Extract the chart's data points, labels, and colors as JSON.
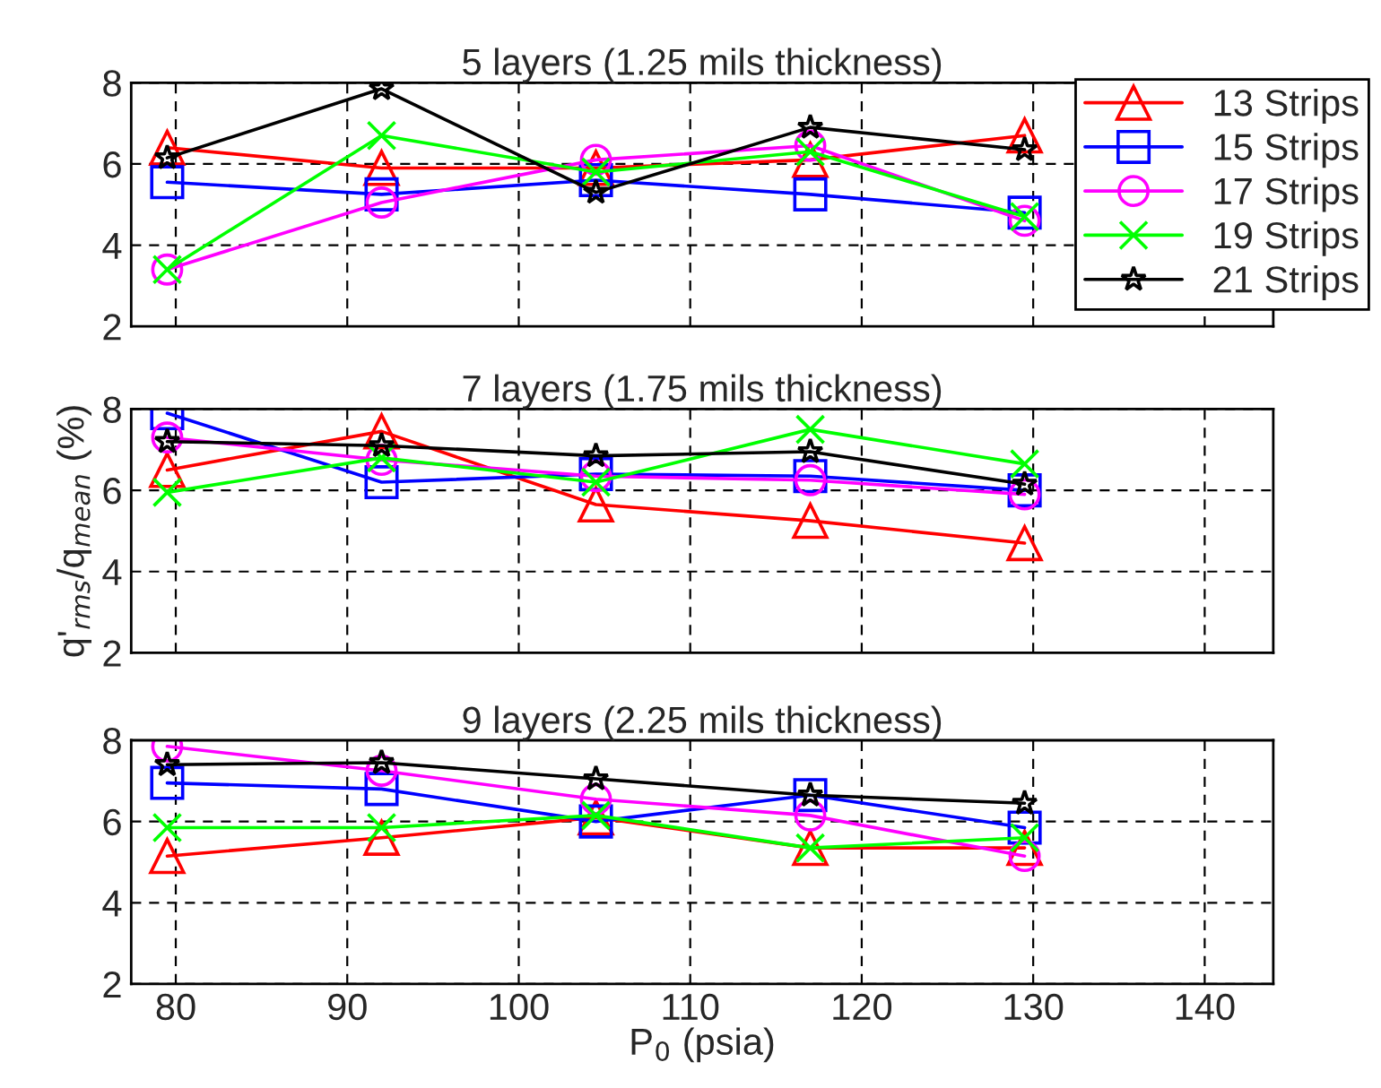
{
  "chart_data": [
    {
      "type": "line",
      "title": "5 layers (1.25 mils thickness)",
      "x": [
        79.5,
        92,
        104.5,
        117,
        129.5
      ],
      "xlim": [
        77.4,
        144
      ],
      "xticks": [
        80,
        90,
        100,
        110,
        120,
        130,
        140
      ],
      "ylim": [
        2,
        8
      ],
      "yticks": [
        2,
        4,
        6,
        8
      ],
      "grid": true,
      "legend": "top right",
      "tick_labels": "y",
      "line_style": "solid",
      "series": [
        {
          "name": "13 Strips",
          "color": "#ff0000",
          "marker": "triangle",
          "values": [
            6.4,
            5.9,
            5.9,
            6.1,
            6.7
          ]
        },
        {
          "name": "15 Strips",
          "color": "#0000ff",
          "marker": "square",
          "values": [
            5.55,
            5.25,
            5.6,
            5.25,
            4.8
          ]
        },
        {
          "name": "17 Strips",
          "color": "#ff00ff",
          "marker": "circle",
          "values": [
            3.4,
            5.05,
            6.1,
            6.45,
            4.6
          ]
        },
        {
          "name": "19 Strips",
          "color": "#00ff00",
          "marker": "cross",
          "values": [
            3.4,
            6.7,
            5.8,
            6.3,
            4.7
          ]
        },
        {
          "name": "21 Strips",
          "color": "#000000",
          "marker": "star",
          "values": [
            6.15,
            7.85,
            5.3,
            6.9,
            6.35
          ]
        }
      ]
    },
    {
      "type": "line",
      "title": "7 layers (1.75 mils thickness)",
      "ylabel": "q'$_{rms}$/q$_{mean}$ (%)",
      "x": [
        79.5,
        92,
        104.5,
        117,
        129.5
      ],
      "xlim": [
        77.4,
        144
      ],
      "xticks": [
        80,
        90,
        100,
        110,
        120,
        130,
        140
      ],
      "ylim": [
        2,
        8
      ],
      "yticks": [
        2,
        4,
        6,
        8
      ],
      "grid": true,
      "tick_labels": "y",
      "line_style": "solid",
      "series": [
        {
          "color": "#ff0000",
          "marker": "triangle",
          "values": [
            6.5,
            7.45,
            5.65,
            5.25,
            4.7
          ]
        },
        {
          "color": "#0000ff",
          "marker": "square",
          "values": [
            7.9,
            6.2,
            6.4,
            6.35,
            6.0
          ]
        },
        {
          "color": "#ff00ff",
          "marker": "circle",
          "values": [
            7.3,
            6.75,
            6.35,
            6.25,
            5.9
          ]
        },
        {
          "color": "#00ff00",
          "marker": "cross",
          "values": [
            5.95,
            6.8,
            6.2,
            7.5,
            6.65
          ]
        },
        {
          "color": "#000000",
          "marker": "star",
          "values": [
            7.2,
            7.1,
            6.85,
            6.95,
            6.15
          ]
        }
      ]
    },
    {
      "type": "line",
      "title": "9 layers (2.25 mils thickness)",
      "xlabel": "P$_{0}$ (psia)",
      "x": [
        79.5,
        92,
        104.5,
        117,
        129.5
      ],
      "xlim": [
        77.4,
        144
      ],
      "xticks": [
        80,
        90,
        100,
        110,
        120,
        130,
        140
      ],
      "ylim": [
        2,
        8
      ],
      "yticks": [
        2,
        4,
        6,
        8
      ],
      "grid": true,
      "line_style": "solid",
      "series": [
        {
          "color": "#ff0000",
          "marker": "triangle",
          "values": [
            5.15,
            5.6,
            6.1,
            5.35,
            5.35
          ]
        },
        {
          "color": "#0000ff",
          "marker": "square",
          "values": [
            6.95,
            6.8,
            6.0,
            6.65,
            5.85
          ]
        },
        {
          "color": "#ff00ff",
          "marker": "circle",
          "values": [
            7.85,
            7.25,
            6.55,
            6.15,
            5.15
          ]
        },
        {
          "color": "#00ff00",
          "marker": "cross",
          "values": [
            5.85,
            5.85,
            6.15,
            5.35,
            5.6
          ]
        },
        {
          "color": "#000000",
          "marker": "star",
          "values": [
            7.4,
            7.45,
            7.05,
            6.65,
            6.45
          ]
        }
      ]
    }
  ]
}
